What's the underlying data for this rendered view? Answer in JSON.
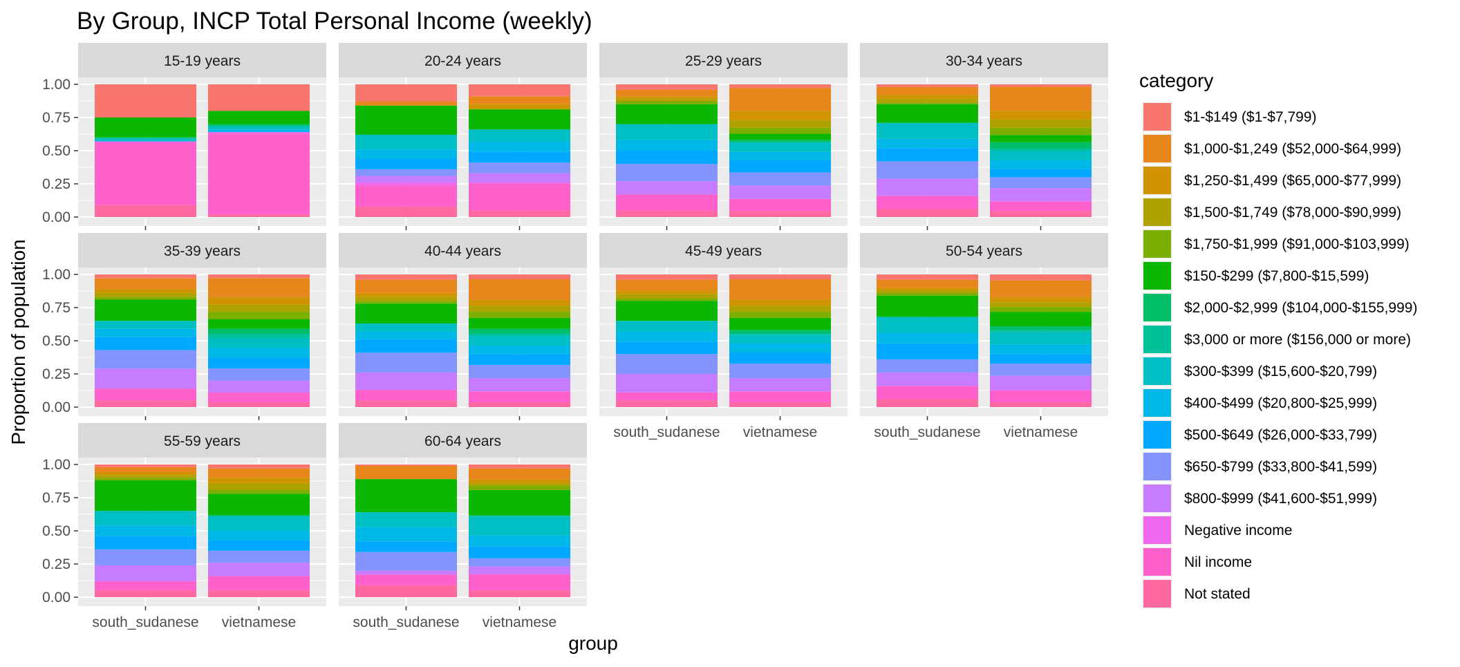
{
  "chart_data": {
    "type": "bar",
    "stacked": true,
    "title": "By Group,  INCP Total Personal Income (weekly)",
    "xlabel": "group",
    "ylabel": "Proportion of population",
    "ylim": [
      0,
      1
    ],
    "y_ticks": [
      "0.00",
      "0.25",
      "0.50",
      "0.75",
      "1.00"
    ],
    "groups": [
      "south_sudanese",
      "vietnamese"
    ],
    "legend": {
      "title": "category",
      "position": "right",
      "items": [
        {
          "label": "$1-$149 ($1-$7,799)",
          "color": "#F8766D"
        },
        {
          "label": "$1,000-$1,249 ($52,000-$64,999)",
          "color": "#E7861B"
        },
        {
          "label": "$1,250-$1,499 ($65,000-$77,999)",
          "color": "#D09400"
        },
        {
          "label": "$1,500-$1,749 ($78,000-$90,999)",
          "color": "#AFA100"
        },
        {
          "label": "$1,750-$1,999 ($91,000-$103,999)",
          "color": "#7CAE00"
        },
        {
          "label": "$150-$299 ($7,800-$15,599)",
          "color": "#0CB702"
        },
        {
          "label": "$2,000-$2,999 ($104,000-$155,999)",
          "color": "#00BE67"
        },
        {
          "label": "$3,000 or more ($156,000 or more)",
          "color": "#00C19A"
        },
        {
          "label": "$300-$399 ($15,600-$20,799)",
          "color": "#00BFC4"
        },
        {
          "label": "$400-$499 ($20,800-$25,999)",
          "color": "#00B8E7"
        },
        {
          "label": "$500-$649 ($26,000-$33,799)",
          "color": "#00A9FF"
        },
        {
          "label": "$650-$799 ($33,800-$41,599)",
          "color": "#8494FF"
        },
        {
          "label": "$800-$999 ($41,600-$51,999)",
          "color": "#C77CFF"
        },
        {
          "label": "Negative income",
          "color": "#ED68ED"
        },
        {
          "label": "Nil income",
          "color": "#FF61CC"
        },
        {
          "label": "Not stated",
          "color": "#FF68A1"
        }
      ]
    },
    "stack_order_bottom_to_top": [
      "Not stated",
      "Nil income",
      "Negative income",
      "$800-$999 ($41,600-$51,999)",
      "$650-$799 ($33,800-$41,599)",
      "$500-$649 ($26,000-$33,799)",
      "$400-$499 ($20,800-$25,999)",
      "$300-$399 ($15,600-$20,799)",
      "$3,000 or more ($156,000 or more)",
      "$2,000-$2,999 ($104,000-$155,999)",
      "$150-$299 ($7,800-$15,599)",
      "$1,750-$1,999 ($91,000-$103,999)",
      "$1,500-$1,749 ($78,000-$90,999)",
      "$1,250-$1,499 ($65,000-$77,999)",
      "$1,000-$1,249 ($52,000-$64,999)",
      "$1-$149 ($1-$7,799)"
    ],
    "facets": [
      {
        "label": "15-19 years",
        "show_x_labels": false,
        "bars": [
          [
            0.09,
            0.47,
            0.01,
            0,
            0,
            0,
            0,
            0.02,
            0.01,
            0,
            0.15,
            0,
            0,
            0,
            0,
            0.25
          ],
          [
            0.02,
            0.61,
            0.01,
            0,
            0,
            0,
            0.02,
            0.02,
            0.01,
            0.01,
            0.1,
            0,
            0,
            0,
            0,
            0.2
          ]
        ]
      },
      {
        "label": "20-24 years",
        "show_x_labels": false,
        "bars": [
          [
            0.08,
            0.16,
            0.02,
            0.05,
            0.05,
            0.08,
            0.07,
            0.11,
            0.0,
            0.0,
            0.22,
            0.0,
            0.0,
            0.0,
            0.03,
            0.13
          ],
          [
            0.05,
            0.2,
            0.01,
            0.07,
            0.08,
            0.08,
            0.08,
            0.09,
            0.0,
            0.0,
            0.15,
            0.0,
            0.01,
            0.03,
            0.06,
            0.09
          ]
        ]
      },
      {
        "label": "25-29 years",
        "show_x_labels": false,
        "bars": [
          [
            0.05,
            0.12,
            0.0,
            0.1,
            0.13,
            0.1,
            0.08,
            0.12,
            0.0,
            0.0,
            0.15,
            0.02,
            0.02,
            0.02,
            0.05,
            0.04
          ],
          [
            0.05,
            0.1,
            0.0,
            0.11,
            0.11,
            0.1,
            0.07,
            0.08,
            0.0,
            0.02,
            0.05,
            0.05,
            0.06,
            0.08,
            0.19,
            0.03
          ]
        ]
      },
      {
        "label": "30-34 years",
        "show_x_labels": false,
        "bars": [
          [
            0.06,
            0.1,
            0.0,
            0.13,
            0.13,
            0.1,
            0.07,
            0.12,
            0.0,
            0.0,
            0.14,
            0.01,
            0.03,
            0.03,
            0.06,
            0.02
          ],
          [
            0.05,
            0.08,
            0.0,
            0.11,
            0.09,
            0.07,
            0.07,
            0.08,
            0.02,
            0.05,
            0.06,
            0.06,
            0.07,
            0.07,
            0.2,
            0.02
          ]
        ]
      },
      {
        "label": "35-39 years",
        "show_x_labels": false,
        "bars": [
          [
            0.05,
            0.09,
            0.0,
            0.15,
            0.14,
            0.1,
            0.06,
            0.06,
            0.0,
            0.0,
            0.16,
            0.02,
            0.03,
            0.03,
            0.08,
            0.03
          ],
          [
            0.04,
            0.08,
            0.0,
            0.1,
            0.1,
            0.09,
            0.08,
            0.08,
            0.04,
            0.04,
            0.08,
            0.06,
            0.06,
            0.06,
            0.16,
            0.03
          ]
        ]
      },
      {
        "label": "40-44 years",
        "show_x_labels": false,
        "bars": [
          [
            0.05,
            0.08,
            0.0,
            0.13,
            0.15,
            0.1,
            0.06,
            0.06,
            0.0,
            0.0,
            0.15,
            0.02,
            0.03,
            0.03,
            0.1,
            0.04
          ],
          [
            0.04,
            0.09,
            0.0,
            0.11,
            0.11,
            0.09,
            0.07,
            0.08,
            0.02,
            0.04,
            0.09,
            0.05,
            0.05,
            0.05,
            0.17,
            0.04
          ]
        ]
      },
      {
        "label": "45-49 years",
        "show_x_labels": true,
        "bars": [
          [
            0.05,
            0.06,
            0.0,
            0.14,
            0.15,
            0.09,
            0.08,
            0.08,
            0.0,
            0.0,
            0.15,
            0.02,
            0.03,
            0.03,
            0.08,
            0.04
          ],
          [
            0.04,
            0.09,
            0.0,
            0.11,
            0.12,
            0.09,
            0.08,
            0.07,
            0.01,
            0.03,
            0.1,
            0.05,
            0.05,
            0.05,
            0.17,
            0.04
          ]
        ]
      },
      {
        "label": "50-54 years",
        "show_x_labels": true,
        "bars": [
          [
            0.06,
            0.1,
            0.0,
            0.1,
            0.1,
            0.12,
            0.08,
            0.12,
            0.0,
            0.0,
            0.16,
            0.02,
            0.02,
            0.02,
            0.06,
            0.04
          ],
          [
            0.04,
            0.1,
            0.0,
            0.12,
            0.1,
            0.08,
            0.08,
            0.1,
            0.02,
            0.03,
            0.12,
            0.04,
            0.04,
            0.04,
            0.14,
            0.05
          ]
        ]
      },
      {
        "label": "55-59 years",
        "show_x_labels": true,
        "bars": [
          [
            0.05,
            0.07,
            0.0,
            0.12,
            0.12,
            0.1,
            0.08,
            0.11,
            0.0,
            0.0,
            0.23,
            0.02,
            0.02,
            0.02,
            0.04,
            0.02
          ],
          [
            0.05,
            0.11,
            0.0,
            0.1,
            0.09,
            0.08,
            0.07,
            0.11,
            0.0,
            0.01,
            0.16,
            0.03,
            0.05,
            0.04,
            0.07,
            0.03
          ]
        ]
      },
      {
        "label": "60-64 years",
        "show_x_labels": true,
        "bars": [
          [
            0.09,
            0.08,
            0.0,
            0.03,
            0.14,
            0.08,
            0.11,
            0.11,
            0.0,
            0.0,
            0.25,
            0.0,
            0.0,
            0.0,
            0.1,
            0.01
          ],
          [
            0.05,
            0.12,
            0.0,
            0.06,
            0.06,
            0.09,
            0.08,
            0.14,
            0.01,
            0.0,
            0.19,
            0.03,
            0.02,
            0.03,
            0.08,
            0.03
          ]
        ]
      }
    ]
  }
}
